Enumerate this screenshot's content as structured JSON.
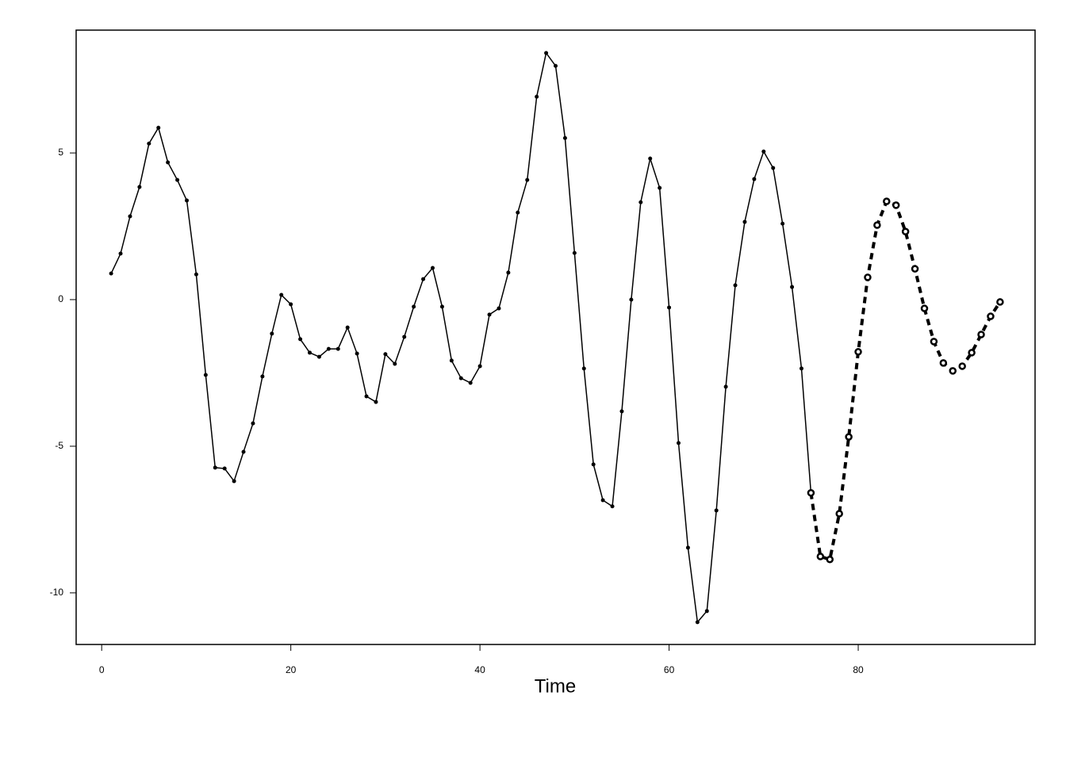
{
  "chart_data": {
    "type": "line",
    "xlabel": "Time",
    "xlim": [
      -2.7,
      98.7
    ],
    "ylim": [
      -11.76,
      9.19
    ],
    "xticks": [
      0,
      20,
      40,
      60,
      80
    ],
    "yticks": [
      -10,
      -5,
      0,
      5
    ],
    "series": [
      {
        "color": "#000000",
        "linestyle": "solid",
        "x": [
          1,
          2,
          3,
          4,
          5,
          6,
          7,
          8,
          9,
          10,
          11,
          12,
          13,
          14,
          15,
          16,
          17,
          18,
          19,
          20,
          21,
          22,
          23,
          24,
          25,
          26,
          27,
          28,
          29,
          30,
          31,
          32,
          33,
          34,
          35,
          36,
          37,
          38,
          39,
          40,
          41,
          42,
          43,
          44,
          45,
          46,
          47,
          48,
          49,
          50,
          51,
          52,
          53,
          54,
          55,
          56,
          57,
          58,
          59,
          60,
          61,
          62,
          63,
          64,
          65,
          66,
          67,
          68,
          69,
          70,
          71,
          72,
          73,
          74,
          75
        ],
        "values": [
          0.89,
          1.57,
          2.84,
          3.84,
          5.32,
          5.86,
          4.68,
          4.08,
          3.38,
          0.86,
          -2.57,
          -5.73,
          -5.76,
          -6.19,
          -5.19,
          -4.22,
          -2.62,
          -1.16,
          0.16,
          -0.16,
          -1.35,
          -1.81,
          -1.95,
          -1.68,
          -1.68,
          -0.95,
          -1.84,
          -3.3,
          -3.49,
          -1.86,
          -2.19,
          -1.27,
          -0.24,
          0.7,
          1.08,
          -0.24,
          -2.08,
          -2.68,
          -2.84,
          -2.27,
          -0.51,
          -0.3,
          0.92,
          2.97,
          4.08,
          6.92,
          8.41,
          7.97,
          5.51,
          1.59,
          -2.35,
          -5.62,
          -6.84,
          -7.05,
          -3.81,
          0.0,
          3.32,
          4.81,
          3.81,
          -0.27,
          -4.89,
          -8.46,
          -11.0,
          -10.62,
          -7.19,
          -2.97,
          0.49,
          2.65,
          4.11,
          5.05,
          4.49,
          2.59,
          0.43,
          -2.35,
          -6.59
        ]
      },
      {
        "color": "#000000",
        "linestyle": "dashed",
        "x": [
          75,
          76,
          77,
          78,
          79,
          80,
          81,
          82,
          83,
          84,
          85,
          86,
          87,
          88,
          89,
          90,
          91,
          92,
          93,
          94,
          95
        ],
        "values": [
          -6.59,
          -8.76,
          -8.86,
          -7.3,
          -4.68,
          -1.78,
          0.76,
          2.54,
          3.35,
          3.22,
          2.32,
          1.05,
          -0.3,
          -1.43,
          -2.16,
          -2.43,
          -2.27,
          -1.81,
          -1.19,
          -0.57,
          -0.08
        ]
      }
    ]
  }
}
